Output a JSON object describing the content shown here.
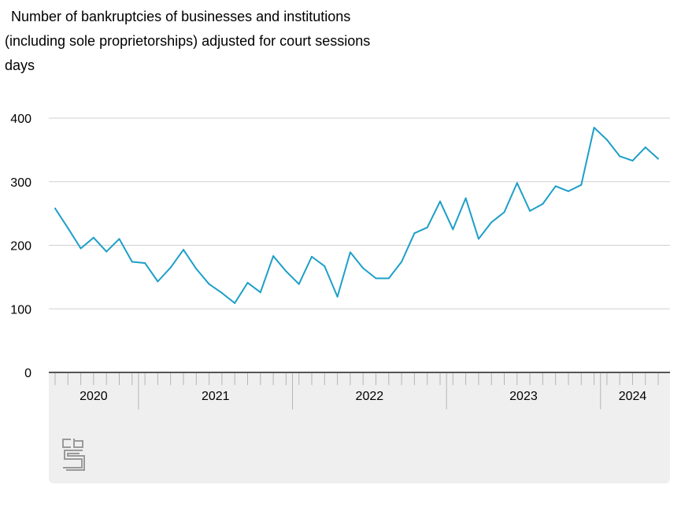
{
  "chart_data": {
    "type": "line",
    "title_lines": [
      "Number of bankruptcies of businesses and institutions",
      "(including sole proprietorships) adjusted for court sessions",
      "days"
    ],
    "xlabel": "",
    "ylabel": "",
    "ylim": [
      0,
      400
    ],
    "yticks": [
      0,
      100,
      200,
      300,
      400
    ],
    "grid": true,
    "legend": "none",
    "line_color": "#1d9fc8",
    "x_start": "2020-01",
    "year_labels": [
      "2020",
      "2021",
      "2022",
      "2023",
      "2024"
    ],
    "year_month_counts": [
      7,
      12,
      12,
      12,
      5
    ],
    "series": [
      {
        "values": [
          258,
          227,
          195,
          212,
          190,
          210,
          174,
          172,
          143,
          165,
          193,
          163,
          139,
          125,
          109,
          141,
          126,
          183,
          159,
          139,
          182,
          167,
          119,
          189,
          164,
          148,
          148,
          174,
          219,
          228,
          269,
          225,
          274,
          210,
          236,
          252,
          298,
          254,
          265,
          293,
          285,
          295,
          385,
          366,
          340,
          333,
          354,
          336
        ]
      }
    ]
  },
  "footer": {
    "logo_icon": "cbs-logo-icon"
  }
}
